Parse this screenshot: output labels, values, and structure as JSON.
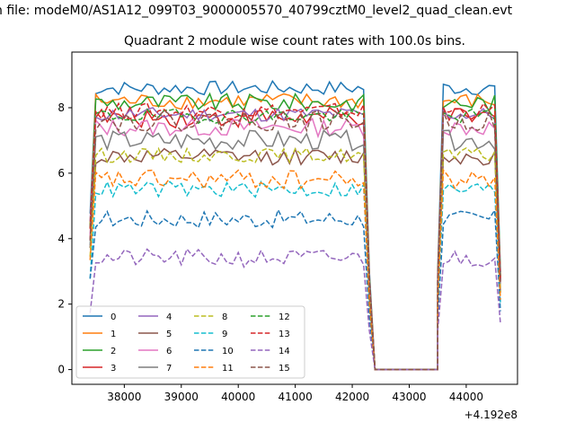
{
  "figure": {
    "suptitle": "n file: modeM0/AS1A12_099T03_9000005570_40799cztM0_level2_quad_clean.evt",
    "title": "Quadrant 2 module wise count rates with 100.0s bins."
  },
  "chart_data": {
    "type": "line",
    "title": "Quadrant 2 module wise count rates with 100.0s bins.",
    "xlabel": "",
    "ylabel": "",
    "x_offset_label": "+4.192e8",
    "xlim": [
      37080,
      44900
    ],
    "ylim": [
      -0.45,
      9.7
    ],
    "xticks": [
      38000,
      39000,
      40000,
      41000,
      42000,
      43000,
      44000
    ],
    "xtick_labels": [
      "38000",
      "39000",
      "40000",
      "41000",
      "42000",
      "43000",
      "44000"
    ],
    "yticks": [
      0,
      2,
      4,
      6,
      8
    ],
    "ytick_labels": [
      "0",
      "2",
      "4",
      "6",
      "8"
    ],
    "grid": false,
    "legend_location": "lower-left",
    "legend_columns": 4,
    "gti_segments": [
      [
        37400,
        42200
      ],
      [
        43550,
        44600
      ]
    ],
    "gap_flat_x": [
      42400,
      43500
    ],
    "series": [
      {
        "name": "0",
        "color": "#1f77b4",
        "dash": "solid",
        "level": 8.6
      },
      {
        "name": "1",
        "color": "#ff7f0e",
        "dash": "solid",
        "level": 8.2
      },
      {
        "name": "2",
        "color": "#2ca02c",
        "dash": "solid",
        "level": 8.15
      },
      {
        "name": "3",
        "color": "#d62728",
        "dash": "solid",
        "level": 7.7
      },
      {
        "name": "4",
        "color": "#9467bd",
        "dash": "solid",
        "level": 7.8
      },
      {
        "name": "5",
        "color": "#8c564b",
        "dash": "solid",
        "level": 6.5
      },
      {
        "name": "6",
        "color": "#e377c2",
        "dash": "solid",
        "level": 7.4
      },
      {
        "name": "7",
        "color": "#7f7f7f",
        "dash": "solid",
        "level": 7.0
      },
      {
        "name": "8",
        "color": "#bcbd22",
        "dash": "dashed",
        "level": 6.55
      },
      {
        "name": "9",
        "color": "#17becf",
        "dash": "dashed",
        "level": 5.5
      },
      {
        "name": "10",
        "color": "#1f77b4",
        "dash": "dashed",
        "level": 4.6
      },
      {
        "name": "11",
        "color": "#ff7f0e",
        "dash": "dashed",
        "level": 5.8
      },
      {
        "name": "12",
        "color": "#2ca02c",
        "dash": "dashed",
        "level": 7.75
      },
      {
        "name": "13",
        "color": "#d62728",
        "dash": "dashed",
        "level": 7.9
      },
      {
        "name": "14",
        "color": "#9467bd",
        "dash": "dashed",
        "level": 3.4
      },
      {
        "name": "15",
        "color": "#8c564b",
        "dash": "dashed",
        "level": 7.6
      }
    ]
  }
}
